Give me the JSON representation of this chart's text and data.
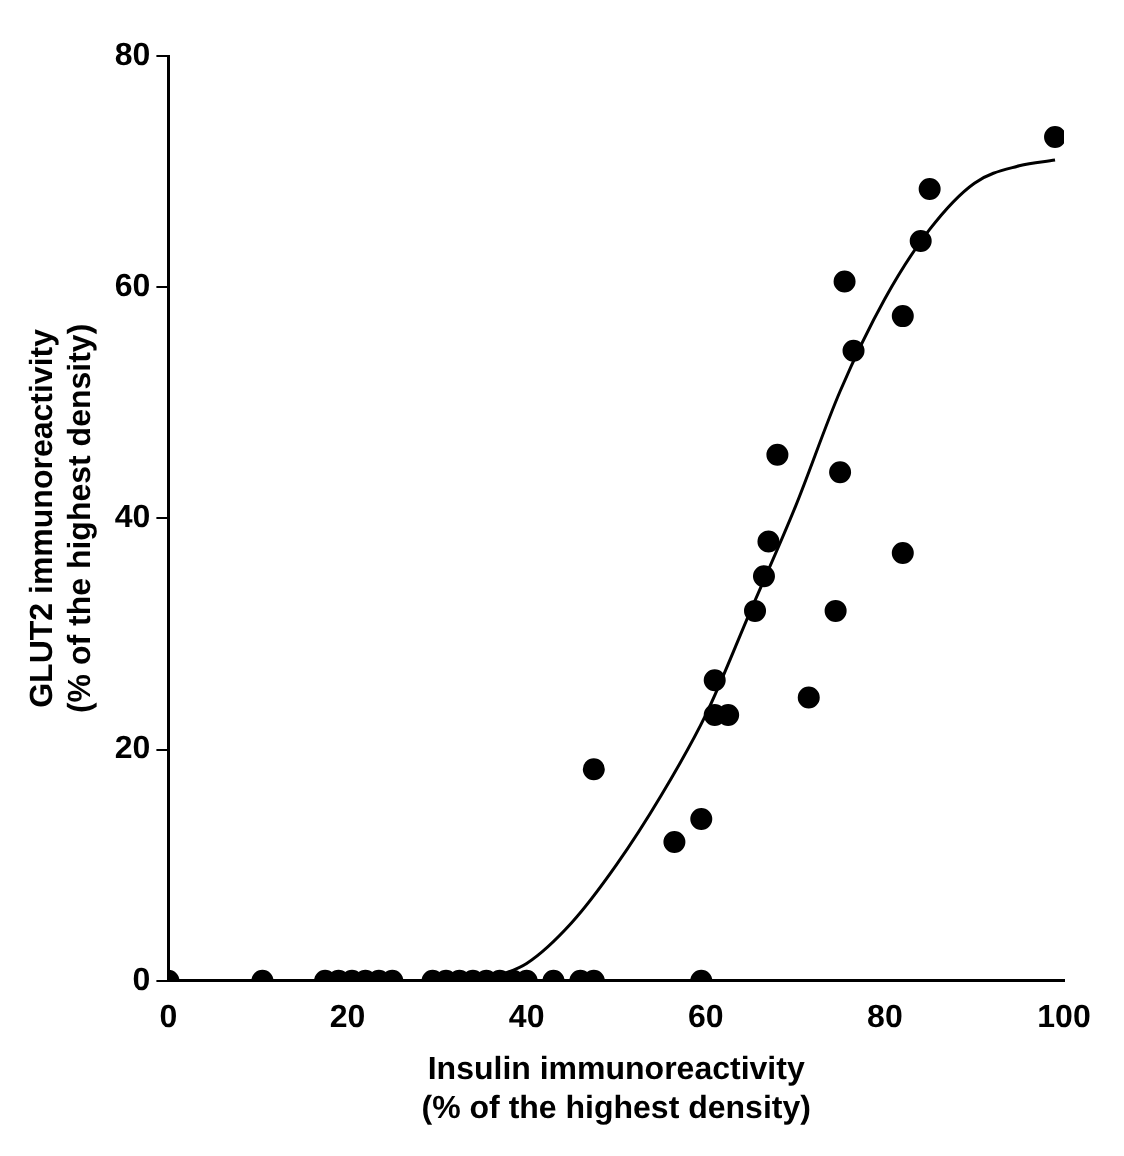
{
  "chart_data": {
    "type": "scatter",
    "xlabel": "Insulin immunoreactivity\n(% of the highest density)",
    "ylabel": "GLUT2 immunoreactivity\n(% of the highest density)",
    "xlim": [
      0,
      100
    ],
    "xticks": [
      0,
      20,
      40,
      60,
      80,
      100
    ],
    "ylim": [
      0,
      80
    ],
    "yticks": [
      0,
      20,
      40,
      60,
      80
    ],
    "grid": false,
    "legend": false,
    "marker": "circle",
    "series": [
      {
        "color": "#000000",
        "x": [
          0,
          10.5,
          17.5,
          19,
          20.5,
          22,
          23.5,
          25,
          29.5,
          31,
          32.5,
          34,
          35.5,
          37,
          38.5,
          40,
          43,
          46,
          47.5,
          59.5,
          47.5,
          56.5,
          59.5,
          61,
          61,
          62.5,
          65.5,
          66.5,
          67,
          68,
          71.5,
          74.5,
          75,
          75.5,
          76.5,
          82,
          82,
          84,
          85,
          99
        ],
        "values": [
          0,
          0,
          0,
          0,
          0,
          0,
          0,
          0,
          0,
          0,
          0,
          0,
          0,
          0,
          0,
          0,
          0,
          0,
          0,
          0,
          18.3,
          12,
          14,
          26,
          23,
          23,
          32,
          35,
          38,
          45.5,
          24.5,
          32,
          44,
          60.5,
          54.5,
          57.5,
          37,
          64,
          68.5,
          73
        ]
      },
      {
        "type": "line",
        "color": "#000000",
        "marker": "none",
        "x": [
          35,
          40,
          45,
          50,
          55,
          60,
          65,
          70,
          75,
          80,
          85,
          90,
          95,
          99
        ],
        "values": [
          0,
          1.5,
          5,
          10,
          16,
          23,
          32,
          41,
          51,
          59,
          65,
          69,
          70.5,
          71
        ]
      }
    ]
  }
}
